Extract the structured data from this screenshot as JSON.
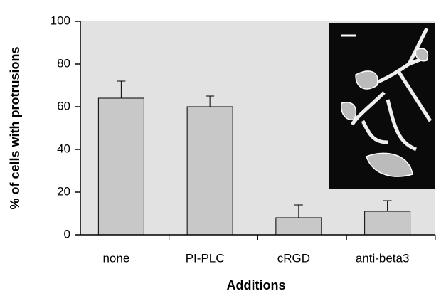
{
  "chart_data": {
    "type": "bar",
    "x_label": "Additions",
    "y_label": "% of cells with protrusions",
    "categories": [
      "none",
      "PI-PLC",
      "cRGD",
      "anti-beta3"
    ],
    "values": [
      64,
      60,
      8,
      11
    ],
    "errors": [
      8,
      5,
      6,
      5
    ],
    "color": "#c8c8c8",
    "plot_background": "#e2e2e2",
    "ylim": [
      0,
      100
    ],
    "yticks": [
      0,
      20,
      40,
      60,
      80,
      100
    ]
  }
}
